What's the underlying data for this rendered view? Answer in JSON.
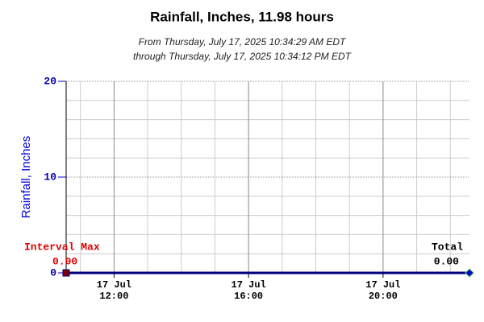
{
  "chart_data": {
    "type": "line",
    "title": "Rainfall, Inches, 11.98 hours",
    "subtitle": [
      "From Thursday, July 17, 2025 10:34:29 AM EDT",
      "through Thursday, July 17, 2025 10:34:12 PM EDT"
    ],
    "ylabel": "Rainfall, Inches",
    "x": [
      "10:34:29",
      "22:34:12"
    ],
    "series": [
      {
        "name": "Rainfall, Inches",
        "color": "#00007f",
        "values": [
          0,
          0
        ]
      }
    ],
    "xlim": [
      "10:34:29",
      "22:34:12"
    ],
    "xticks": [
      {
        "value": "12:00",
        "label": "17 Jul 12:00"
      },
      {
        "value": "16:00",
        "label": "17 Jul 16:00"
      },
      {
        "value": "20:00",
        "label": "17 Jul 20:00"
      }
    ],
    "xminorticks": [
      "11:00",
      "13:00",
      "14:00",
      "15:00",
      "17:00",
      "18:00",
      "19:00",
      "21:00",
      "22:00"
    ],
    "ylim": [
      0,
      20
    ],
    "yticks": [
      0,
      10,
      20
    ],
    "yminorticks": [
      2,
      4,
      6,
      8,
      12,
      14,
      16,
      18
    ],
    "grid": true,
    "annotations": [
      {
        "label": "Interval Max",
        "value": 0,
        "value_label": "0.00",
        "color": "#dd0000"
      },
      {
        "label": "Total",
        "value": 0,
        "value_label": "0.00",
        "color": "#000000"
      }
    ]
  }
}
